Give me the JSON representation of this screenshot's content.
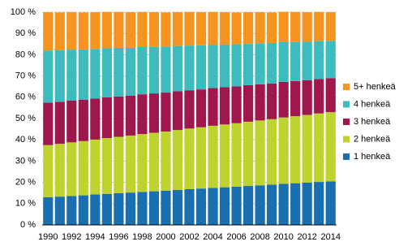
{
  "chart_data": {
    "type": "stacked_bar",
    "categories": [
      "1990",
      null,
      "1992",
      null,
      "1994",
      null,
      "1996",
      null,
      "1998",
      null,
      "2000",
      null,
      "2002",
      null,
      "2004",
      null,
      "2006",
      null,
      "2008",
      null,
      "2010",
      null,
      "2012",
      null,
      "2014"
    ],
    "series": [
      {
        "name": "1 henkeä",
        "color": "#1a6fb1",
        "values": [
          13.0,
          13.3,
          13.6,
          13.9,
          14.3,
          14.6,
          14.9,
          15.2,
          15.5,
          15.8,
          16.1,
          16.4,
          16.8,
          17.1,
          17.4,
          17.7,
          18.0,
          18.3,
          18.6,
          18.9,
          19.3,
          19.6,
          19.9,
          20.2,
          20.5
        ]
      },
      {
        "name": "2 henkeä",
        "color": "#bfd32e",
        "values": [
          24.5,
          24.8,
          25.2,
          25.5,
          25.8,
          26.2,
          26.5,
          26.8,
          27.2,
          27.5,
          27.8,
          28.2,
          28.5,
          28.8,
          29.2,
          29.5,
          29.8,
          30.2,
          30.5,
          30.8,
          31.2,
          31.5,
          31.8,
          32.2,
          32.5
        ]
      },
      {
        "name": "3 henkeä",
        "color": "#a0174e",
        "values": [
          20.0,
          19.8,
          19.7,
          19.5,
          19.3,
          19.2,
          19.0,
          18.8,
          18.7,
          18.5,
          18.3,
          18.2,
          18.0,
          17.8,
          17.7,
          17.5,
          17.3,
          17.2,
          17.0,
          16.8,
          16.7,
          16.5,
          16.3,
          16.2,
          16.0
        ]
      },
      {
        "name": "4 henkeä",
        "color": "#3dbcbf",
        "values": [
          24.5,
          24.2,
          23.9,
          23.6,
          23.3,
          23.0,
          22.8,
          22.5,
          22.2,
          21.9,
          21.6,
          21.3,
          21.0,
          20.7,
          20.4,
          20.1,
          19.8,
          19.5,
          19.3,
          19.0,
          18.7,
          18.4,
          18.1,
          17.8,
          17.5
        ]
      },
      {
        "name": "5+ henkeä",
        "color": "#f5951f",
        "values": [
          18.0,
          17.8,
          17.6,
          17.4,
          17.3,
          17.1,
          16.9,
          16.7,
          16.5,
          16.3,
          16.1,
          15.9,
          15.8,
          15.6,
          15.4,
          15.2,
          15.0,
          14.8,
          14.6,
          14.4,
          14.3,
          14.1,
          13.9,
          13.7,
          13.5
        ]
      }
    ],
    "ylim": [
      0,
      100
    ],
    "yticks": [
      {
        "value": 0,
        "label": "0 %"
      },
      {
        "value": 10,
        "label": "10 %"
      },
      {
        "value": 20,
        "label": "20 %"
      },
      {
        "value": 30,
        "label": "30 %"
      },
      {
        "value": 40,
        "label": "40 %"
      },
      {
        "value": 50,
        "label": "50 %"
      },
      {
        "value": 60,
        "label": "60 %"
      },
      {
        "value": 70,
        "label": "70 %"
      },
      {
        "value": 80,
        "label": "80 %"
      },
      {
        "value": 90,
        "label": "90 %"
      },
      {
        "value": 100,
        "label": "100 %"
      }
    ],
    "grid": true,
    "legend": "right"
  }
}
